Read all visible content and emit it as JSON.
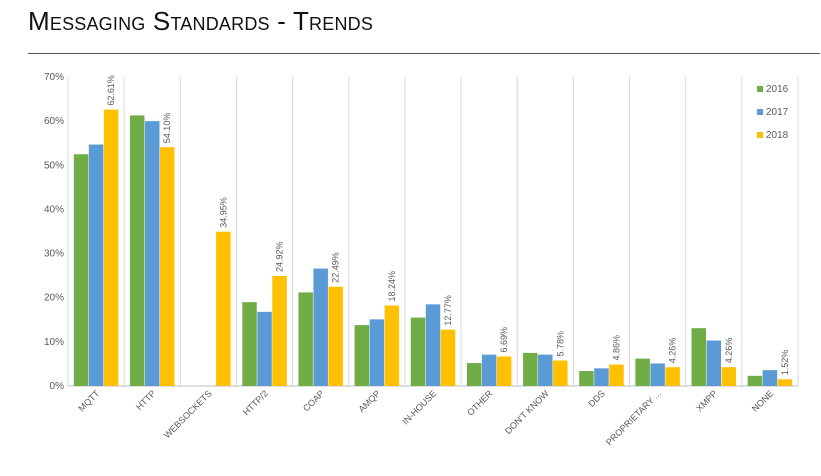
{
  "title": "Messaging Standards - Trends",
  "chart_data": {
    "type": "bar",
    "categories": [
      "MQTT",
      "HTTP",
      "WEBSOCKETS",
      "HTTP/2",
      "COAP",
      "AMQP",
      "IN-HOUSE",
      "OTHER",
      "DON'T KNOW",
      "DDS",
      "PROPRIETARY ...",
      "XMPP",
      "NONE"
    ],
    "series": [
      {
        "name": "2016",
        "color": "#70ad47",
        "values": [
          52.5,
          61.3,
          null,
          19.0,
          21.2,
          13.8,
          15.5,
          5.2,
          7.5,
          3.4,
          6.2,
          13.1,
          2.3
        ]
      },
      {
        "name": "2017",
        "color": "#5b9bd5",
        "values": [
          54.7,
          60.0,
          null,
          16.8,
          26.6,
          15.1,
          18.5,
          7.1,
          7.1,
          4.0,
          5.1,
          10.3,
          3.6
        ]
      },
      {
        "name": "2018",
        "color": "#ffc000",
        "values": [
          62.61,
          54.1,
          34.95,
          24.92,
          22.49,
          18.24,
          12.77,
          6.69,
          5.78,
          4.86,
          4.26,
          4.26,
          1.52
        ]
      }
    ],
    "data_labels": [
      "62.61%",
      "54.10%",
      "34.95%",
      "24.92%",
      "22.49%",
      "18.24%",
      "12.77%",
      "6.69%",
      "5.78%",
      "4.86%",
      "4.26%",
      "4.26%",
      "1.52%"
    ],
    "yticks": [
      "0%",
      "10%",
      "20%",
      "30%",
      "40%",
      "50%",
      "60%",
      "70%"
    ],
    "ylim": [
      0,
      70
    ],
    "grid": "vertical separators between categories",
    "legend": "top-right"
  }
}
